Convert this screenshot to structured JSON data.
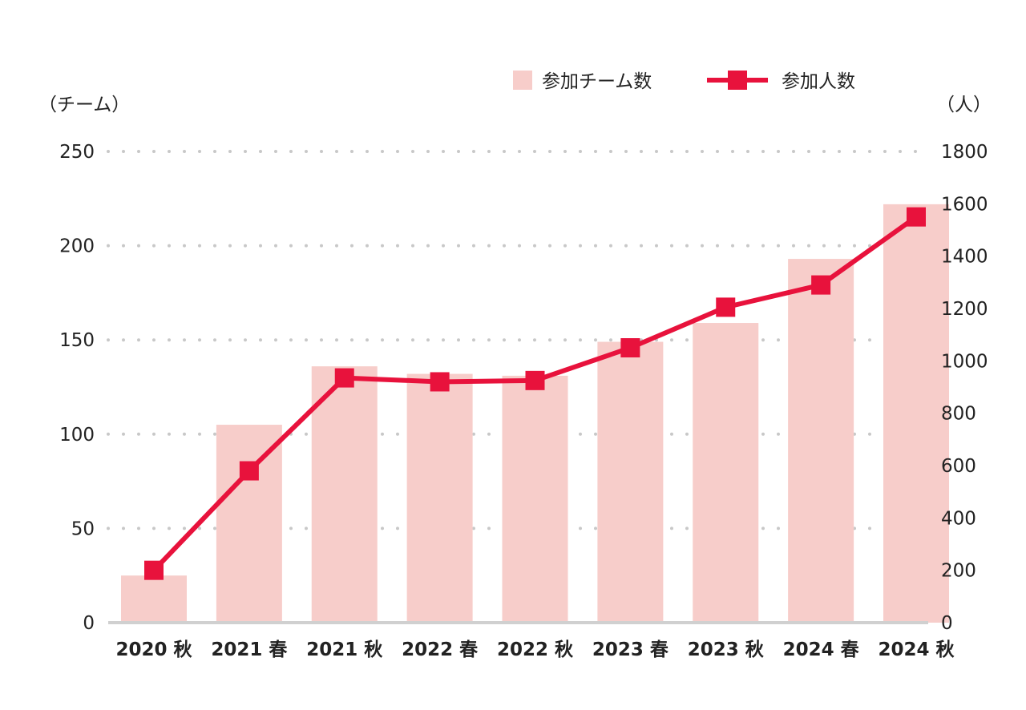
{
  "chart_data": {
    "type": "bar+line",
    "title": "",
    "categories": [
      "2020 秋",
      "2021 春",
      "2021 秋",
      "2022 春",
      "2022 秋",
      "2023 春",
      "2023 秋",
      "2024 春",
      "2024 秋"
    ],
    "series": [
      {
        "name": "参加チーム数",
        "type": "bar",
        "axis": "left",
        "color": "#f7cdca",
        "values": [
          25,
          105,
          136,
          132,
          131,
          149,
          159,
          193,
          222
        ]
      },
      {
        "name": "参加人数",
        "type": "line",
        "axis": "right",
        "color": "#e8123c",
        "values": [
          200,
          580,
          935,
          920,
          925,
          1050,
          1205,
          1290,
          1550
        ]
      }
    ],
    "y_left": {
      "label": "（チーム）",
      "ylim": [
        0,
        250
      ],
      "ticks": [
        "0",
        "50",
        "100",
        "150",
        "200",
        "250"
      ]
    },
    "y_right": {
      "label": "（人）",
      "ylim": [
        0,
        1800
      ],
      "ticks": [
        "0",
        "200",
        "400",
        "600",
        "800",
        "1000",
        "1200",
        "1400",
        "1600",
        "1800"
      ]
    },
    "grid": "dotted horizontal at left-axis ticks",
    "legend_position": "top-right"
  }
}
